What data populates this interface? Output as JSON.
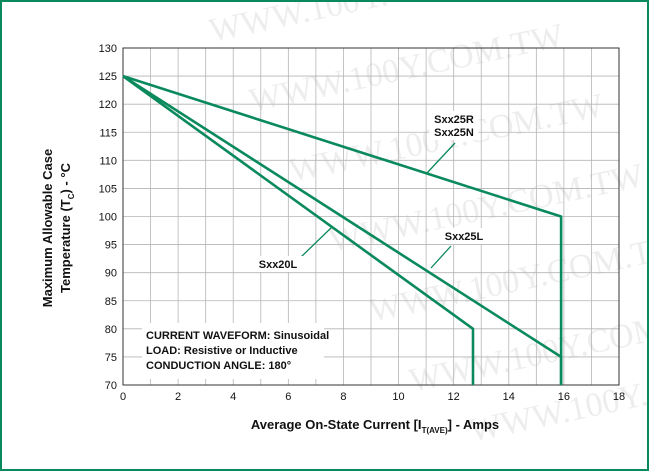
{
  "chart_data": {
    "type": "line",
    "xlabel_main": "Average On-State Current [I",
    "xlabel_sub": "T(AVE)",
    "xlabel_tail": "] - Amps",
    "ylabel_line1": "Maximum Allowable Case",
    "ylabel_line2_main": "Temperature (T",
    "ylabel_line2_sub": "C",
    "ylabel_line2_tail": ") - °C",
    "xlim": [
      0,
      18
    ],
    "ylim": [
      70,
      130
    ],
    "x_ticks": [
      0,
      2,
      4,
      6,
      8,
      10,
      12,
      14,
      16,
      18
    ],
    "y_ticks": [
      70,
      75,
      80,
      85,
      90,
      95,
      100,
      105,
      110,
      115,
      120,
      125,
      130
    ],
    "grid": true,
    "series": [
      {
        "name": "Sxx25R\nSxx25N",
        "label_lines": [
          "Sxx25R",
          "Sxx25N"
        ],
        "points": [
          [
            0,
            125
          ],
          [
            15.9,
            100
          ],
          [
            15.9,
            70
          ]
        ]
      },
      {
        "name": "Sxx25L",
        "label_lines": [
          "Sxx25L"
        ],
        "points": [
          [
            0,
            125
          ],
          [
            15.9,
            75
          ],
          [
            15.9,
            70
          ]
        ]
      },
      {
        "name": "Sxx20L",
        "label_lines": [
          "Sxx20L"
        ],
        "points": [
          [
            0,
            125
          ],
          [
            12.7,
            80
          ],
          [
            12.7,
            70
          ]
        ]
      }
    ],
    "annotation_lines": [
      "CURRENT WAVEFORM: Sinusoidal",
      "LOAD: Resistive or Inductive",
      "CONDUCTION ANGLE: 180°"
    ]
  },
  "watermark": "WWW.100Y.COM.TW",
  "colors": {
    "accent": "#0a8a5c",
    "grid": "#b5b5b5"
  }
}
